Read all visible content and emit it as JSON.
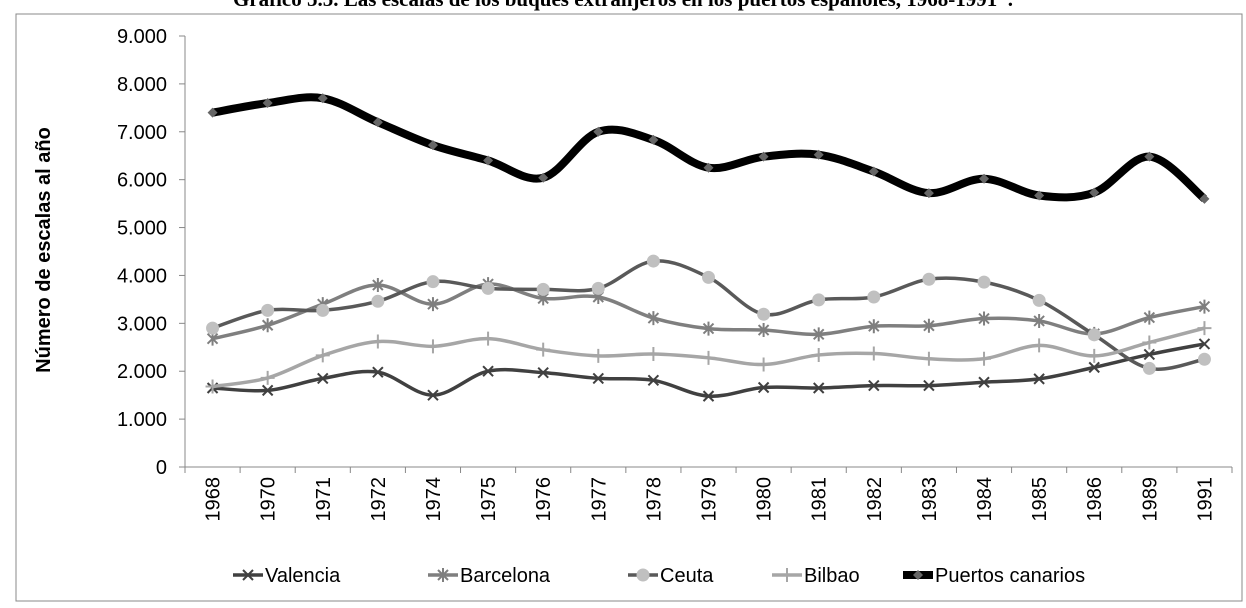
{
  "chart_data": {
    "type": "line",
    "title": "Gráfico 5.5. Las escalas de los buques extranjeros en los puertos españoles, 1968-1991*.",
    "y_label": "Número de escalas al año",
    "categories": [
      "1968",
      "1970",
      "1971",
      "1972",
      "1974",
      "1975",
      "1976",
      "1977",
      "1978",
      "1979",
      "1980",
      "1981",
      "1982",
      "1983",
      "1984",
      "1985",
      "1986",
      "1989",
      "1991"
    ],
    "ylim": [
      0,
      9000
    ],
    "yticks": [
      0,
      {
        "value": 1000,
        "label": "1.000"
      },
      {
        "value": 2000,
        "label": "2.000"
      },
      {
        "value": 3000,
        "label": "3.000"
      },
      {
        "value": 4000,
        "label": "4.000"
      },
      {
        "value": 5000,
        "label": "5.000"
      },
      {
        "value": 6000,
        "label": "6.000"
      },
      {
        "value": 7000,
        "label": "7.000"
      },
      {
        "value": 8000,
        "label": "8.000"
      },
      {
        "value": 9000,
        "label": "9.000"
      }
    ],
    "smooth": true,
    "series": [
      {
        "name": "Valencia",
        "color": "#404040",
        "marker": "x",
        "values": [
          1650,
          1600,
          1850,
          1980,
          1500,
          2000,
          1970,
          1850,
          1810,
          1480,
          1660,
          1650,
          1700,
          1700,
          1770,
          1840,
          2080,
          2350,
          2570
        ]
      },
      {
        "name": "Barcelona",
        "color": "#7f7f7f",
        "marker": "asterisk",
        "values": [
          2680,
          2960,
          3400,
          3800,
          3400,
          3820,
          3520,
          3550,
          3110,
          2890,
          2860,
          2770,
          2940,
          2950,
          3100,
          3050,
          2780,
          3120,
          3350
        ]
      },
      {
        "name": "Ceuta",
        "color": "#595959",
        "marker": "circle",
        "values": [
          2900,
          3270,
          3270,
          3460,
          3870,
          3730,
          3710,
          3730,
          4300,
          3960,
          3190,
          3490,
          3550,
          3920,
          3860,
          3480,
          2760,
          2060,
          2250
        ]
      },
      {
        "name": "Bilbao",
        "color": "#a6a6a6",
        "marker": "plus",
        "values": [
          1680,
          1860,
          2330,
          2620,
          2520,
          2680,
          2450,
          2320,
          2360,
          2280,
          2140,
          2340,
          2370,
          2260,
          2260,
          2540,
          2320,
          2600,
          2900
        ]
      },
      {
        "name": "Puertos canarios",
        "color": "#000000",
        "marker": "diamond",
        "line_width": 8,
        "values": [
          7400,
          7600,
          7700,
          7200,
          6720,
          6400,
          6040,
          7000,
          6830,
          6250,
          6480,
          6520,
          6170,
          5720,
          6020,
          5670,
          5730,
          6480,
          5600
        ]
      }
    ]
  }
}
